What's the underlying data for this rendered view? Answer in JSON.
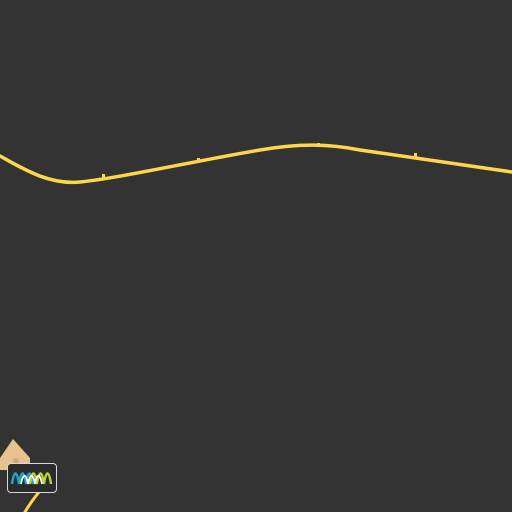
{
  "map": {
    "theme": "dark",
    "colors": {
      "background": "#333333",
      "road": "#FDD64A",
      "road_marker": "#FDD64A",
      "area_fill": "#E8C38F",
      "poi_marker": "#D9A967"
    },
    "features": [
      {
        "kind": "highway",
        "name": ""
      },
      {
        "kind": "secondary-road",
        "name": ""
      },
      {
        "kind": "land-area",
        "name": ""
      }
    ],
    "attribution_badge": {
      "icon": "wave-logo-icon",
      "colors": [
        "#1BA9C8",
        "#B9D232",
        "#FFFFFF"
      ]
    }
  }
}
